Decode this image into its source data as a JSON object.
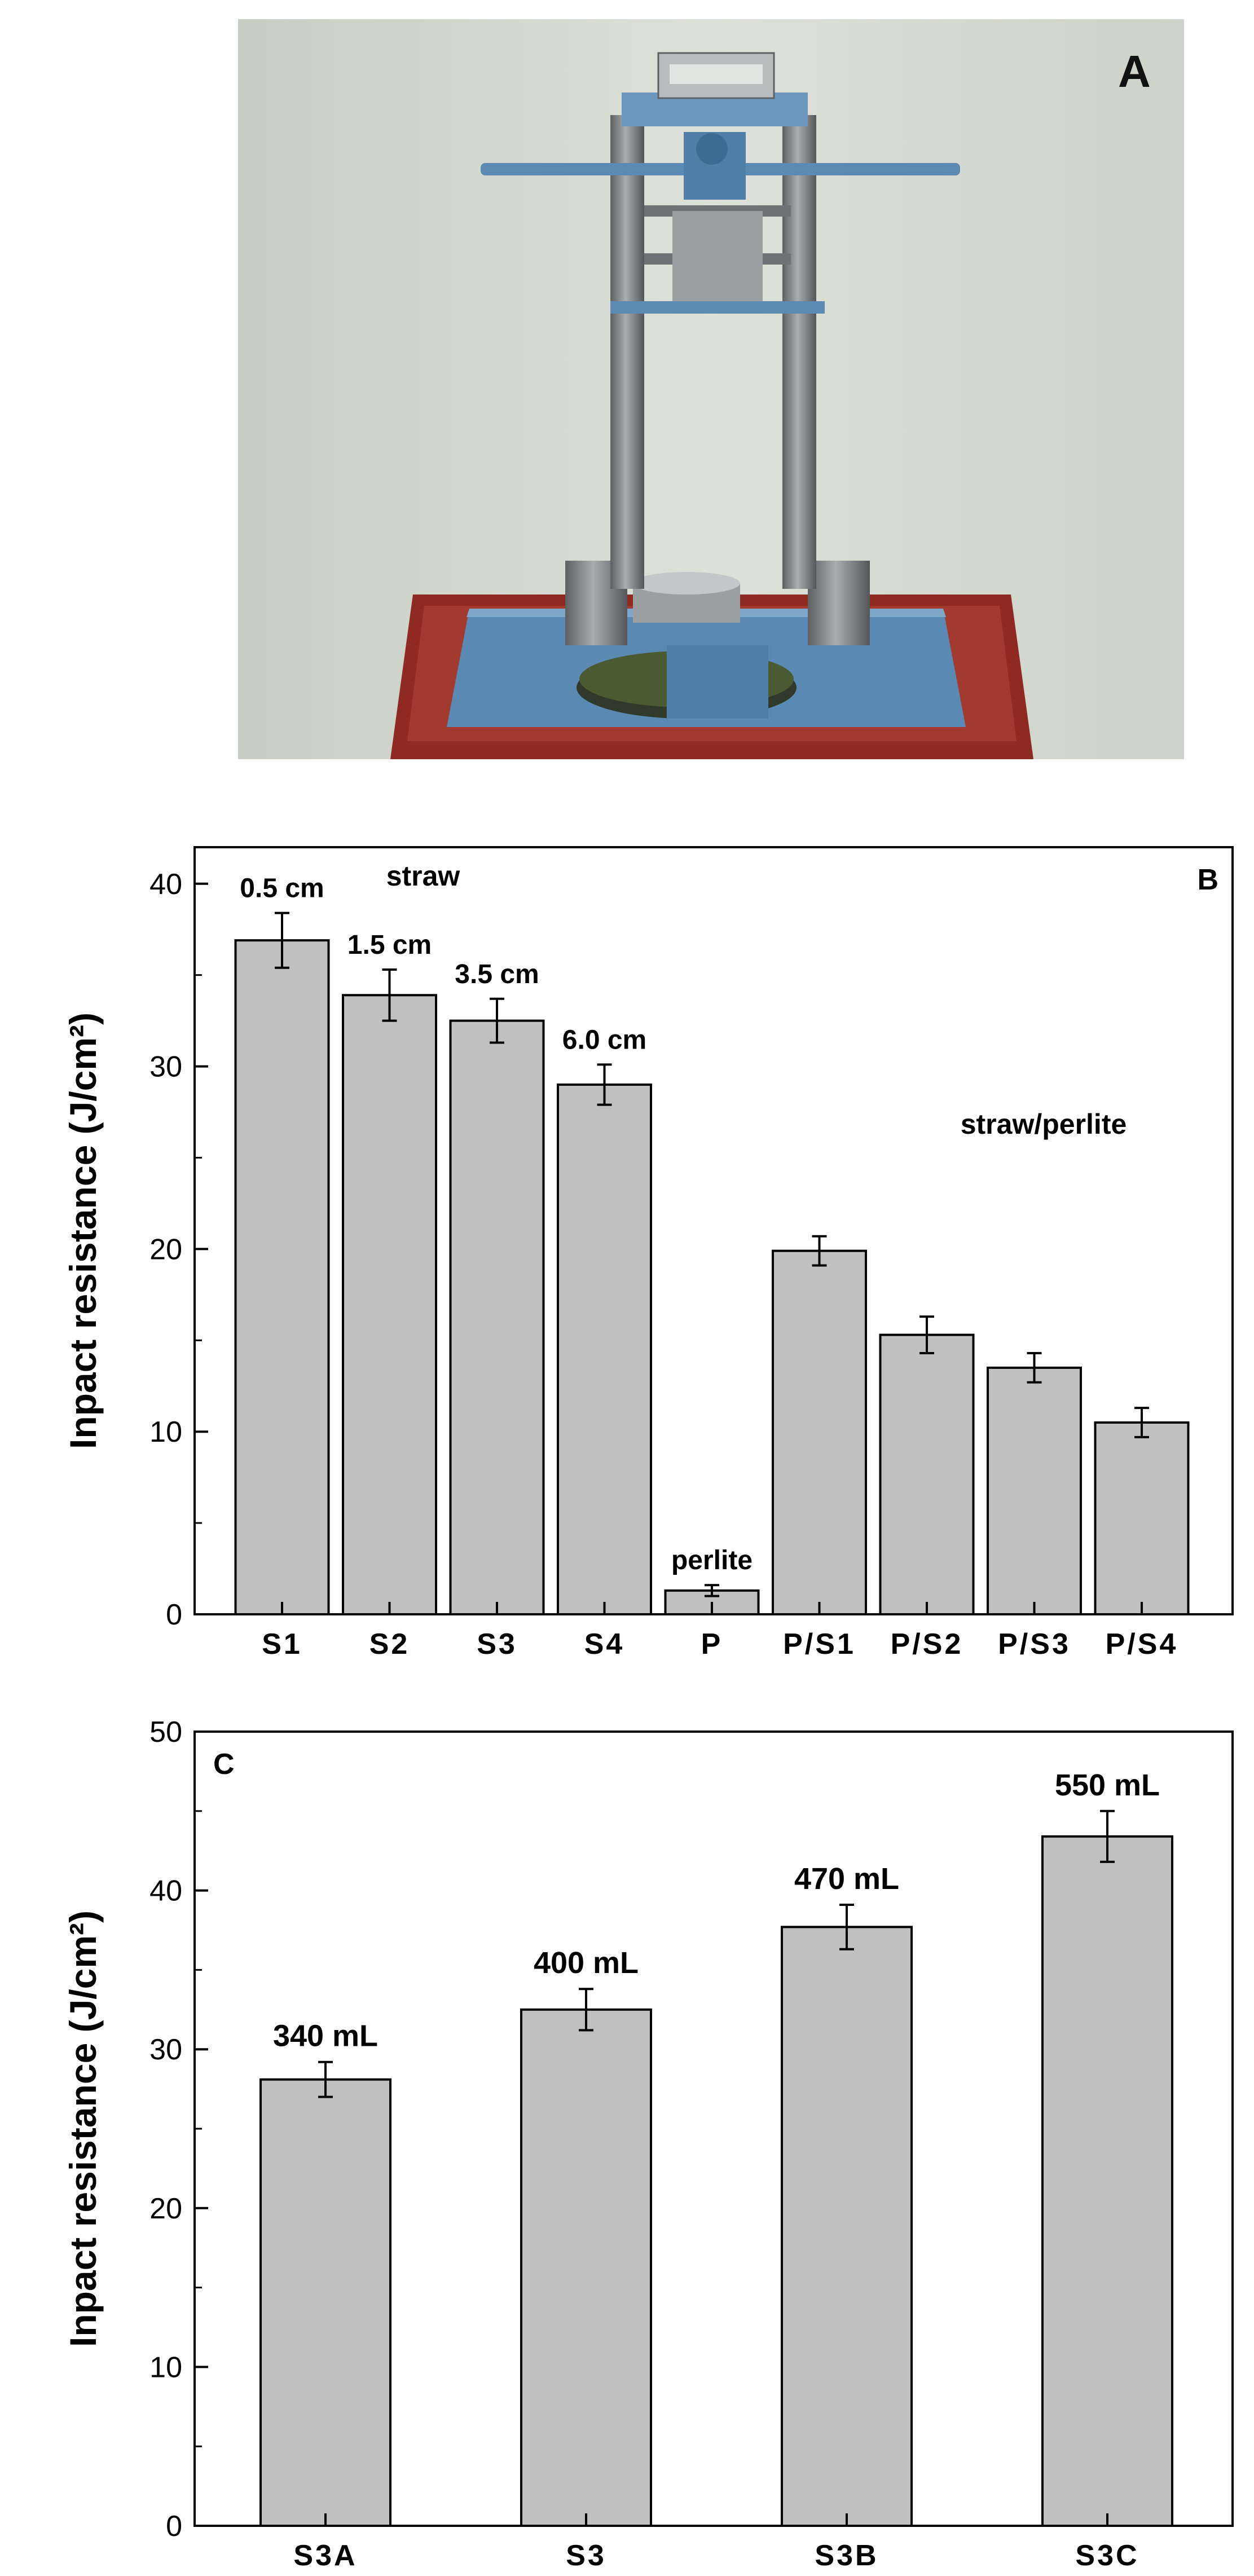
{
  "photo": {
    "panel_label": "A",
    "subject": "impact testing apparatus",
    "colors": {
      "wall": "#d8ddd4",
      "frame_blue": "#5a89b3",
      "base_red": "#8f2a22",
      "steel": "#8a8d8e"
    }
  },
  "chart_data": [
    {
      "type": "bar",
      "panel_label": "B",
      "ylabel": "Inpact resistance (J/cm²)",
      "ylim": [
        0,
        42
      ],
      "yticks": [
        0,
        10,
        20,
        30,
        40
      ],
      "categories": [
        "S1",
        "S2",
        "S3",
        "S4",
        "P",
        "P/S1",
        "P/S2",
        "P/S3",
        "P/S4"
      ],
      "values": [
        36.9,
        33.9,
        32.5,
        29.0,
        1.3,
        19.9,
        15.3,
        13.5,
        10.5
      ],
      "errors": [
        1.5,
        1.4,
        1.2,
        1.1,
        0.3,
        0.8,
        1.0,
        0.8,
        0.8
      ],
      "bar_labels": [
        "0.5 cm",
        "1.5 cm",
        "3.5 cm",
        "6.0 cm",
        "perlite",
        "",
        "",
        "",
        ""
      ],
      "annotations": [
        "straw",
        "straw/perlite"
      ],
      "bar_color": "#c0c0c0",
      "grid": false
    },
    {
      "type": "bar",
      "panel_label": "C",
      "ylabel": "Inpact resistance (J/cm²)",
      "ylim": [
        0,
        50
      ],
      "yticks": [
        0,
        10,
        20,
        30,
        40,
        50
      ],
      "categories": [
        "S3A",
        "S3",
        "S3B",
        "S3C"
      ],
      "values": [
        28.1,
        32.5,
        37.7,
        43.4
      ],
      "errors": [
        1.1,
        1.3,
        1.4,
        1.6
      ],
      "bar_labels": [
        "340 mL",
        "400 mL",
        "470 mL",
        "550 mL"
      ],
      "bar_color": "#c0c0c0",
      "grid": false
    }
  ]
}
